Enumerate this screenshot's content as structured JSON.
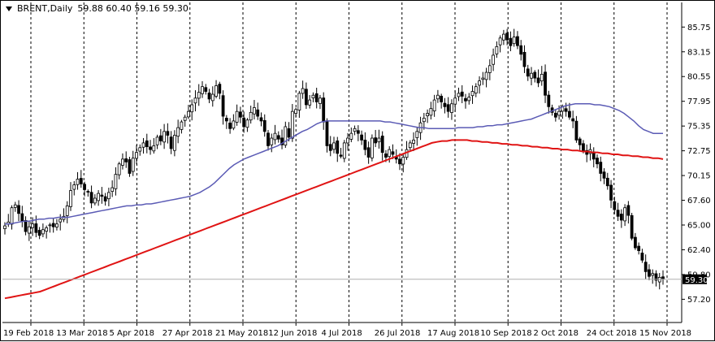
{
  "window": {
    "symbol": "BRENT,Daily",
    "ohlc": "59.88 60.40 59.16 59.30",
    "current_price_label": "59.30"
  },
  "colors": {
    "background": "#ffffff",
    "candle": "#000000",
    "grid": "#000000",
    "ma_fast": "#5b5bb5",
    "ma_slow": "#e01414",
    "price_line": "#b0b0b0"
  },
  "chart_data": {
    "type": "candlestick",
    "ylim": [
      57.2,
      86.3
    ],
    "y_ticks": [
      "85.75",
      "83.15",
      "80.55",
      "77.95",
      "75.35",
      "72.75",
      "70.15",
      "67.60",
      "65.00",
      "62.40",
      "59.80",
      "57.20"
    ],
    "x_ticks": [
      "19 Feb 2018",
      "13 Mar 2018",
      "5 Apr 2018",
      "27 Apr 2018",
      "21 May 2018",
      "12 Jun 2018",
      "4 Jul 2018",
      "26 Jul 2018",
      "17 Aug 2018",
      "10 Sep 2018",
      "2 Oct 2018",
      "24 Oct 2018",
      "15 Nov 2018"
    ],
    "grid": "vertical dashed at date labels",
    "last_price": 59.3,
    "close": [
      64.9,
      65.3,
      66.8,
      67.1,
      66.2,
      65.4,
      64.3,
      64.8,
      65.1,
      64.2,
      63.9,
      64.5,
      64.7,
      65.0,
      64.8,
      65.1,
      65.6,
      65.9,
      67.0,
      68.6,
      69.2,
      69.8,
      69.3,
      68.7,
      68.5,
      67.3,
      67.8,
      68.3,
      68.0,
      67.5,
      68.4,
      68.9,
      70.3,
      71.4,
      71.9,
      71.6,
      70.4,
      72.0,
      72.6,
      73.1,
      73.6,
      73.2,
      72.9,
      73.3,
      74.2,
      73.8,
      74.8,
      74.4,
      73.0,
      74.4,
      75.2,
      75.8,
      76.3,
      76.9,
      77.6,
      78.3,
      78.9,
      79.5,
      79.0,
      78.2,
      78.7,
      79.6,
      78.8,
      76.4,
      75.9,
      75.1,
      75.9,
      76.9,
      76.3,
      75.3,
      76.0,
      76.8,
      77.3,
      76.4,
      75.9,
      74.8,
      73.3,
      74.1,
      74.6,
      74.0,
      73.4,
      75.3,
      74.2,
      76.9,
      77.1,
      78.8,
      79.3,
      77.6,
      78.1,
      78.6,
      77.9,
      78.3,
      75.8,
      73.3,
      72.8,
      73.6,
      72.5,
      72.2,
      73.6,
      74.1,
      74.6,
      75.1,
      74.6,
      73.9,
      72.9,
      72.1,
      74.1,
      73.6,
      74.1,
      72.6,
      72.1,
      72.9,
      72.4,
      71.9,
      71.4,
      72.1,
      72.9,
      73.6,
      73.9,
      74.8,
      75.7,
      76.2,
      76.7,
      77.2,
      78.1,
      78.6,
      77.9,
      77.4,
      76.9,
      77.7,
      78.3,
      78.8,
      78.5,
      78.0,
      78.4,
      79.0,
      79.5,
      80.1,
      80.4,
      81.0,
      81.7,
      82.8,
      83.7,
      84.6,
      85.0,
      84.4,
      83.8,
      84.7,
      83.8,
      82.9,
      81.6,
      80.6,
      80.9,
      80.4,
      79.9,
      80.8,
      78.6,
      77.4,
      76.8,
      76.3,
      76.9,
      77.4,
      76.9,
      76.3,
      75.9,
      73.9,
      73.4,
      72.8,
      72.4,
      72.9,
      71.9,
      71.4,
      70.4,
      69.9,
      69.1,
      67.6,
      66.6,
      65.9,
      65.5,
      66.8,
      66.0,
      63.6,
      62.6,
      62.3,
      61.3,
      60.1,
      59.6,
      59.9,
      59.2,
      59.5,
      59.3
    ],
    "ma_fast": [
      65.1,
      65.1,
      65.2,
      65.3,
      65.4,
      65.4,
      65.5,
      65.6,
      65.6,
      65.7,
      65.7,
      65.8,
      65.8,
      65.8,
      65.9,
      66.0,
      66.1,
      66.2,
      66.3,
      66.4,
      66.5,
      66.6,
      66.7,
      66.8,
      66.9,
      67.0,
      67.0,
      67.1,
      67.1,
      67.2,
      67.2,
      67.3,
      67.4,
      67.5,
      67.6,
      67.7,
      67.8,
      67.9,
      68.0,
      68.2,
      68.4,
      68.7,
      69.0,
      69.4,
      69.9,
      70.4,
      70.9,
      71.3,
      71.6,
      71.9,
      72.1,
      72.3,
      72.5,
      72.7,
      72.9,
      73.1,
      73.3,
      73.6,
      73.9,
      74.2,
      74.5,
      74.8,
      75.0,
      75.3,
      75.6,
      75.8,
      75.9,
      75.9,
      75.9,
      75.9,
      75.9,
      75.9,
      75.9,
      75.9,
      75.9,
      75.9,
      75.9,
      75.9,
      75.8,
      75.8,
      75.7,
      75.6,
      75.5,
      75.4,
      75.3,
      75.2,
      75.2,
      75.1,
      75.1,
      75.1,
      75.1,
      75.1,
      75.1,
      75.2,
      75.2,
      75.2,
      75.2,
      75.3,
      75.3,
      75.4,
      75.4,
      75.5,
      75.5,
      75.6,
      75.7,
      75.8,
      75.9,
      76.0,
      76.1,
      76.3,
      76.5,
      76.7,
      76.9,
      77.1,
      77.3,
      77.5,
      77.6,
      77.7,
      77.7,
      77.7,
      77.7,
      77.6,
      77.6,
      77.5,
      77.4,
      77.2,
      77.0,
      76.7,
      76.3,
      75.9,
      75.4,
      75.0,
      74.8,
      74.6,
      74.6,
      74.6
    ],
    "ma_slow": [
      57.3,
      57.4,
      57.5,
      57.6,
      57.7,
      57.8,
      57.9,
      58.0,
      58.2,
      58.4,
      58.6,
      58.8,
      59.0,
      59.2,
      59.4,
      59.6,
      59.8,
      60.0,
      60.2,
      60.4,
      60.6,
      60.8,
      61.0,
      61.2,
      61.4,
      61.6,
      61.8,
      62.0,
      62.2,
      62.4,
      62.6,
      62.8,
      63.0,
      63.2,
      63.4,
      63.6,
      63.8,
      64.0,
      64.2,
      64.4,
      64.6,
      64.8,
      65.0,
      65.2,
      65.4,
      65.6,
      65.8,
      66.0,
      66.2,
      66.4,
      66.6,
      66.8,
      67.0,
      67.2,
      67.4,
      67.6,
      67.8,
      68.0,
      68.2,
      68.4,
      68.6,
      68.8,
      69.0,
      69.2,
      69.4,
      69.6,
      69.8,
      70.0,
      70.2,
      70.4,
      70.6,
      70.8,
      71.0,
      71.2,
      71.4,
      71.6,
      71.8,
      72.0,
      72.2,
      72.4,
      72.6,
      72.8,
      73.0,
      73.2,
      73.4,
      73.6,
      73.7,
      73.8,
      73.8,
      73.9,
      73.9,
      73.9,
      73.9,
      73.8,
      73.8,
      73.7,
      73.7,
      73.6,
      73.6,
      73.5,
      73.5,
      73.4,
      73.4,
      73.3,
      73.3,
      73.2,
      73.2,
      73.1,
      73.1,
      73.0,
      73.0,
      72.9,
      72.9,
      72.8,
      72.8,
      72.7,
      72.7,
      72.6,
      72.6,
      72.5,
      72.5,
      72.4,
      72.4,
      72.3,
      72.3,
      72.2,
      72.2,
      72.1,
      72.1,
      72.0,
      72.0,
      71.9
    ]
  }
}
